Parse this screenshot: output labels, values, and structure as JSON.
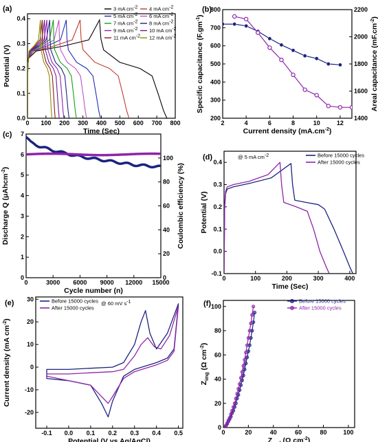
{
  "chart_data": [
    {
      "id": "a",
      "panel_label": "(a)",
      "type": "line",
      "xlabel": "Time (Sec)",
      "ylabel": "Potential (V)",
      "xlim": [
        0,
        800
      ],
      "ylim": [
        0,
        0.42
      ],
      "xticks": [
        0,
        100,
        200,
        300,
        400,
        500,
        600,
        700,
        800
      ],
      "yticks": [
        0.0,
        0.1,
        0.2,
        0.3,
        0.4
      ],
      "legend_placement": "top-right",
      "series": [
        {
          "name": "3 mA cm",
          "sup": "-2",
          "color": "#000000",
          "tc": 390,
          "td": 365
        },
        {
          "name": "4 mA cm",
          "sup": "-2",
          "color": "#c0392b",
          "tc": 285,
          "td": 265
        },
        {
          "name": "5 mA cm",
          "sup": "-2",
          "color": "#1f2db4",
          "tc": 210,
          "td": 185
        },
        {
          "name": "6 mA cm",
          "sup": "-2",
          "color": "#c34fc3",
          "tc": 170,
          "td": 150
        },
        {
          "name": "7 mA cm",
          "sup": "-2",
          "color": "#12a012",
          "tc": 140,
          "td": 125
        },
        {
          "name": "8 mA cm",
          "sup": "-2",
          "color": "#1a237e",
          "tc": 120,
          "td": 105
        },
        {
          "name": "9 mA cm",
          "sup": "-2",
          "color": "#8e24aa",
          "tc": 105,
          "td": 92
        },
        {
          "name": "10 mA cm",
          "sup": "-2",
          "color": "#6a1b9a",
          "tc": 92,
          "td": 80
        },
        {
          "name": "11 mA cm",
          "sup": "-2",
          "color": "#8b1a1a",
          "tc": 80,
          "td": 70
        },
        {
          "name": "12 mA cm",
          "sup": "-2",
          "color": "#8b8b00",
          "tc": 70,
          "td": 62
        }
      ]
    },
    {
      "id": "b",
      "panel_label": "(b)",
      "type": "line",
      "xlabel": "Current density (mA.cm",
      "xlabel_sup": "-2",
      "xlabel_end": ")",
      "ylabel": "Specific capacitance (F.gm",
      "ylabel_sup": "-1",
      "ylabel_end": ")",
      "y2label": "Areal capacitance (mF.cm",
      "y2label_sup": "-2",
      "y2label_end": ")",
      "xlim": [
        2,
        13
      ],
      "ylim": [
        200,
        800
      ],
      "y2lim": [
        1400,
        2200
      ],
      "xticks": [
        2,
        4,
        6,
        8,
        10,
        12
      ],
      "yticks": [
        200,
        300,
        400,
        500,
        600,
        700,
        800
      ],
      "y2ticks": [
        1400,
        1600,
        1800,
        2000,
        2200
      ],
      "series": [
        {
          "name": "Specific capacitance",
          "axis": "left",
          "color": "#1a237e",
          "x": [
            2,
            3,
            4,
            5,
            6,
            7,
            8,
            9,
            10,
            11,
            12
          ],
          "y": [
            720,
            720,
            710,
            680,
            640,
            605,
            575,
            545,
            530,
            500,
            495
          ]
        },
        {
          "name": "Areal capacitance",
          "axis": "right",
          "color": "#8e24aa",
          "x": [
            3,
            4,
            5,
            6,
            7,
            8,
            9,
            10,
            11,
            12,
            13
          ],
          "y": [
            2150,
            2130,
            2030,
            1920,
            1830,
            1720,
            1610,
            1570,
            1490,
            1480,
            1480
          ]
        }
      ]
    },
    {
      "id": "c",
      "panel_label": "(c)",
      "type": "scatter",
      "xlabel": "Cycle number (n)",
      "ylabel": "Discharge Q (μAhcm",
      "ylabel_sup": "-2",
      "ylabel_end": ")",
      "y2label": "Coulombic efficiency (%)",
      "xlim": [
        0,
        15000
      ],
      "ylim": [
        0,
        7
      ],
      "y2lim": [
        0,
        120
      ],
      "xticks": [
        0,
        3000,
        6000,
        9000,
        12000,
        15000
      ],
      "yticks": [
        0,
        1,
        2,
        3,
        4,
        5,
        6,
        7
      ],
      "y2ticks": [
        0,
        20,
        40,
        60,
        80,
        100
      ],
      "series": [
        {
          "name": "Discharge Q",
          "axis": "left",
          "color": "#1a237e",
          "x": [
            0,
            500,
            1500,
            3000,
            4500,
            6000,
            7500,
            9000,
            10500,
            12000,
            13500,
            15000
          ],
          "y": [
            6.85,
            6.6,
            6.4,
            6.2,
            6.05,
            5.9,
            5.8,
            5.7,
            5.6,
            5.5,
            5.45,
            5.4
          ]
        },
        {
          "name": "Coulombic efficiency",
          "axis": "right",
          "color": "#8e24aa",
          "x": [
            0,
            3000,
            6000,
            9000,
            12000,
            15000
          ],
          "y": [
            103,
            103,
            103,
            103,
            103,
            103
          ]
        }
      ]
    },
    {
      "id": "d",
      "panel_label": "(d)",
      "type": "line",
      "xlabel": "Time (Sec)",
      "ylabel": "Potential (V)",
      "xlim": [
        0,
        420
      ],
      "ylim": [
        -0.1,
        0.45
      ],
      "xticks": [
        0,
        100,
        200,
        300,
        400
      ],
      "yticks": [
        -0.1,
        0.0,
        0.1,
        0.2,
        0.3,
        0.4
      ],
      "annotation": "@ 5 mA cm",
      "annotation_sup": "-2",
      "legend_placement": "top-right",
      "series": [
        {
          "name": "Before 15000 cycles",
          "color": "#1a237e",
          "x": [
            0,
            2,
            5,
            10,
            30,
            80,
            150,
            213,
            218,
            225,
            260,
            300,
            320,
            350,
            380,
            400,
            410
          ],
          "y": [
            -0.1,
            0.2,
            0.26,
            0.28,
            0.29,
            0.305,
            0.33,
            0.395,
            0.3,
            0.23,
            0.22,
            0.21,
            0.19,
            0.1,
            0.0,
            -0.07,
            -0.1
          ]
        },
        {
          "name": "After 15000 cycles",
          "color": "#8e24aa",
          "x": [
            0,
            2,
            5,
            10,
            30,
            80,
            140,
            178,
            183,
            190,
            230,
            265,
            285,
            305,
            325,
            335
          ],
          "y": [
            -0.1,
            0.21,
            0.27,
            0.29,
            0.3,
            0.315,
            0.345,
            0.4,
            0.3,
            0.22,
            0.2,
            0.18,
            0.1,
            0.0,
            -0.07,
            -0.1
          ]
        }
      ]
    },
    {
      "id": "e",
      "panel_label": "(e)",
      "type": "line",
      "xlabel": "Potential (V vs Ag/AgCl)",
      "ylabel": "Current density (mA cm",
      "ylabel_sup": "-2",
      "ylabel_end": ")",
      "xlim": [
        -0.15,
        0.52
      ],
      "ylim": [
        -27,
        31
      ],
      "xticks": [
        -0.1,
        0.0,
        0.1,
        0.2,
        0.3,
        0.4,
        0.5
      ],
      "yticks": [
        -20,
        -10,
        0,
        10,
        20,
        30
      ],
      "annotation": "@ 60 mV s",
      "annotation_sup": "-1",
      "legend_placement": "top-left",
      "series": [
        {
          "name": "Before 15000 cycles",
          "color": "#1a237e",
          "x": [
            -0.1,
            0.0,
            0.1,
            0.2,
            0.25,
            0.3,
            0.33,
            0.35,
            0.37,
            0.4,
            0.45,
            0.5,
            0.48,
            0.45,
            0.4,
            0.3,
            0.25,
            0.2,
            0.18,
            0.15,
            0.1,
            0.0,
            -0.1
          ],
          "y": [
            -1,
            -1,
            -0.5,
            0,
            2,
            10,
            20,
            25,
            15,
            8,
            15,
            28,
            8,
            4,
            2,
            -1,
            -4,
            -15,
            -22,
            -16,
            -8,
            -6,
            -5
          ]
        },
        {
          "name": "After 15000 cycles",
          "color": "#8e24aa",
          "x": [
            -0.1,
            0.0,
            0.1,
            0.2,
            0.25,
            0.3,
            0.33,
            0.36,
            0.39,
            0.42,
            0.46,
            0.5,
            0.48,
            0.45,
            0.4,
            0.3,
            0.25,
            0.2,
            0.18,
            0.15,
            0.1,
            0.0,
            -0.1
          ],
          "y": [
            -3,
            -3,
            -2.5,
            -2,
            -1,
            5,
            10,
            13,
            9,
            8,
            14,
            27,
            7,
            3,
            1,
            -2,
            -5,
            -13,
            -16,
            -13,
            -8,
            -6,
            -4
          ]
        }
      ]
    },
    {
      "id": "f",
      "panel_label": "(f)",
      "type": "line",
      "xlabel": "Z",
      "xlabel_sub": "real",
      "xlabel_end": " (Ω cm",
      "xlabel_sup": "-2",
      "xlabel_end2": ")",
      "ylabel": "Z",
      "ylabel_sub": "img",
      "ylabel_end": " (Ω cm",
      "ylabel_sup": "-2",
      "ylabel_end2": ")",
      "xlim": [
        0,
        105
      ],
      "ylim": [
        0,
        105
      ],
      "xticks": [
        0,
        20,
        40,
        60,
        80,
        100
      ],
      "yticks": [
        0,
        20,
        40,
        60,
        80,
        100
      ],
      "legend_placement": "top-right",
      "series": [
        {
          "name": "Before 15000 cycles",
          "color": "#1a237e",
          "x": [
            1.5,
            2,
            3,
            4,
            5,
            6,
            7,
            8,
            9,
            10,
            11,
            12,
            13,
            14,
            15,
            16,
            17,
            18,
            19,
            20,
            21,
            22,
            23,
            24,
            25
          ],
          "y": [
            0,
            1.5,
            3,
            5,
            7,
            9,
            12,
            14,
            17,
            20,
            24,
            27,
            31,
            35,
            39,
            43,
            48,
            53,
            58,
            63,
            68,
            74,
            80,
            87,
            95
          ]
        },
        {
          "name": "After 15000 cycles",
          "color": "#8e24aa",
          "x": [
            1.5,
            2,
            3,
            4,
            5,
            6,
            7,
            8,
            9,
            10,
            11,
            12,
            13,
            14,
            15,
            16,
            17,
            18,
            19,
            20,
            21,
            22,
            23,
            24
          ],
          "y": [
            0,
            1.5,
            3.5,
            6,
            8,
            11,
            14,
            17,
            20,
            24,
            28,
            32,
            36,
            41,
            46,
            51,
            56,
            62,
            68,
            74,
            80,
            86,
            93,
            100
          ]
        }
      ]
    }
  ]
}
